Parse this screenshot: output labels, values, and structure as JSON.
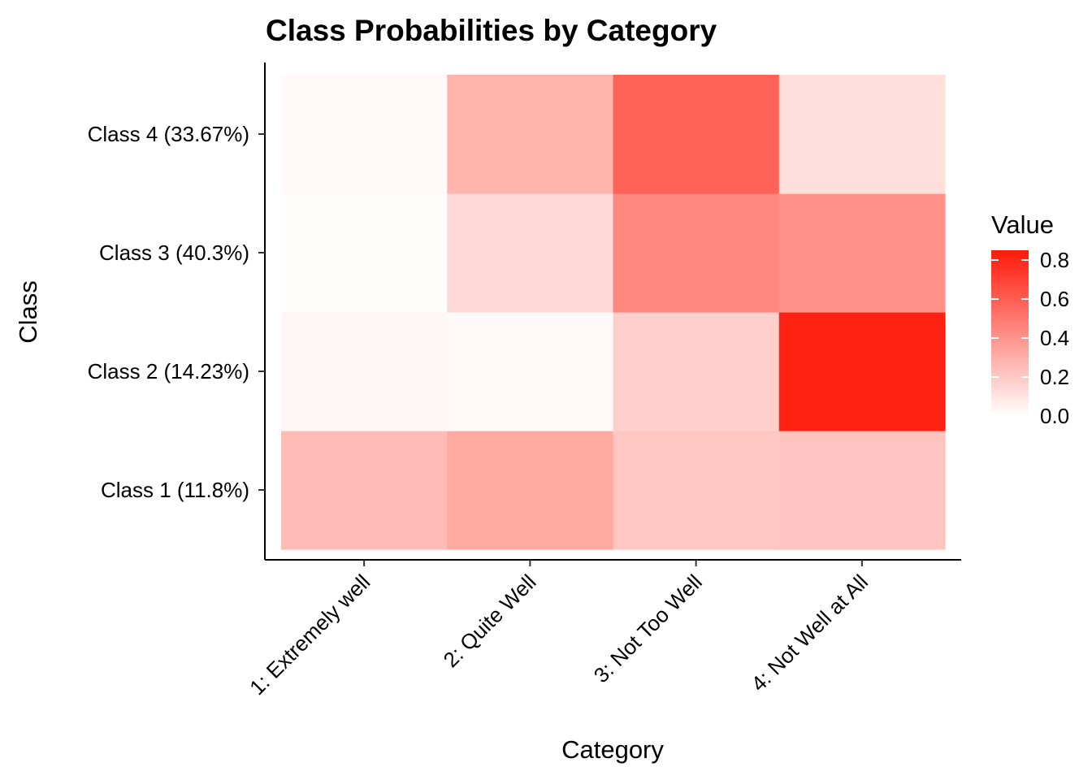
{
  "chart_data": {
    "type": "heatmap",
    "title": "Class Probabilities by Category",
    "xlabel": "Category",
    "ylabel": "Class",
    "x_categories": [
      "1: Extremely well",
      "2: Quite Well",
      "3: Not Too Well",
      "4: Not Well at All"
    ],
    "y_categories": [
      "Class 1 (11.8%)",
      "Class 2 (14.23%)",
      "Class 3 (40.3%)",
      "Class 4 (33.67%)"
    ],
    "values": [
      [
        0.25,
        0.32,
        0.21,
        0.22
      ],
      [
        0.03,
        0.02,
        0.18,
        0.82
      ],
      [
        0.01,
        0.14,
        0.44,
        0.41
      ],
      [
        0.02,
        0.28,
        0.58,
        0.12
      ]
    ],
    "legend": {
      "title": "Value",
      "ticks": [
        "0.0",
        "0.2",
        "0.4",
        "0.6",
        "0.8"
      ],
      "range": [
        0.0,
        0.85
      ],
      "low_color": "#ffffff",
      "high_color": "#ff1a0a",
      "position": "right"
    }
  }
}
